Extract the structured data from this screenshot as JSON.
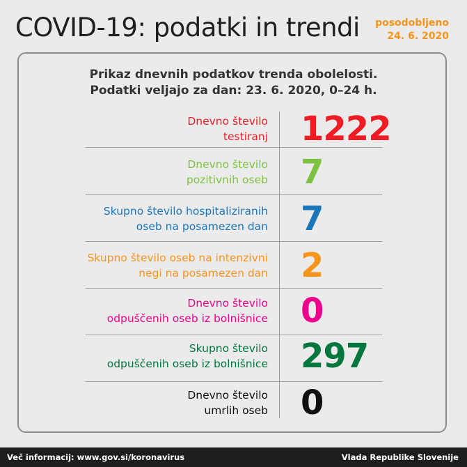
{
  "header": {
    "title": "COVID-19: podatki in trendi",
    "updated_line1": "posodobljeno",
    "updated_line2": "24. 6. 2020"
  },
  "subtitle": {
    "line1": "Prikaz dnevnih podatkov trenda obolelosti.",
    "line2": "Podatki veljajo za dan: 23. 6. 2020, 0–24 h."
  },
  "rows": [
    {
      "line1": "Dnevno število",
      "line2": "testiranj",
      "value": "1222",
      "color": "#ee1c25"
    },
    {
      "line1": "Dnevno število",
      "line2": "pozitivnih oseb",
      "value": "7",
      "color": "#7dc242"
    },
    {
      "line1": "Skupno število hospitaliziranih",
      "line2": "oseb na posamezen dan",
      "value": "7",
      "color": "#1a75bb"
    },
    {
      "line1": "Skupno število oseb na intenzivni",
      "line2": "negi na posamezen dan",
      "value": "2",
      "color": "#f7941d"
    },
    {
      "line1": "Dnevno število",
      "line2": "odpuščenih oseb iz bolnišnice",
      "value": "0",
      "color": "#ec008c"
    },
    {
      "line1": "Skupno število",
      "line2": "odpuščenih oseb iz bolnišnice",
      "value": "297",
      "color": "#00773c"
    },
    {
      "line1": "Dnevno število",
      "line2": "umrlih oseb",
      "value": "0",
      "color": "#111111"
    }
  ],
  "footer": {
    "left": "Več informacij: www.gov.si/koronavirus",
    "right": "Vlada Republike Slovenije"
  }
}
